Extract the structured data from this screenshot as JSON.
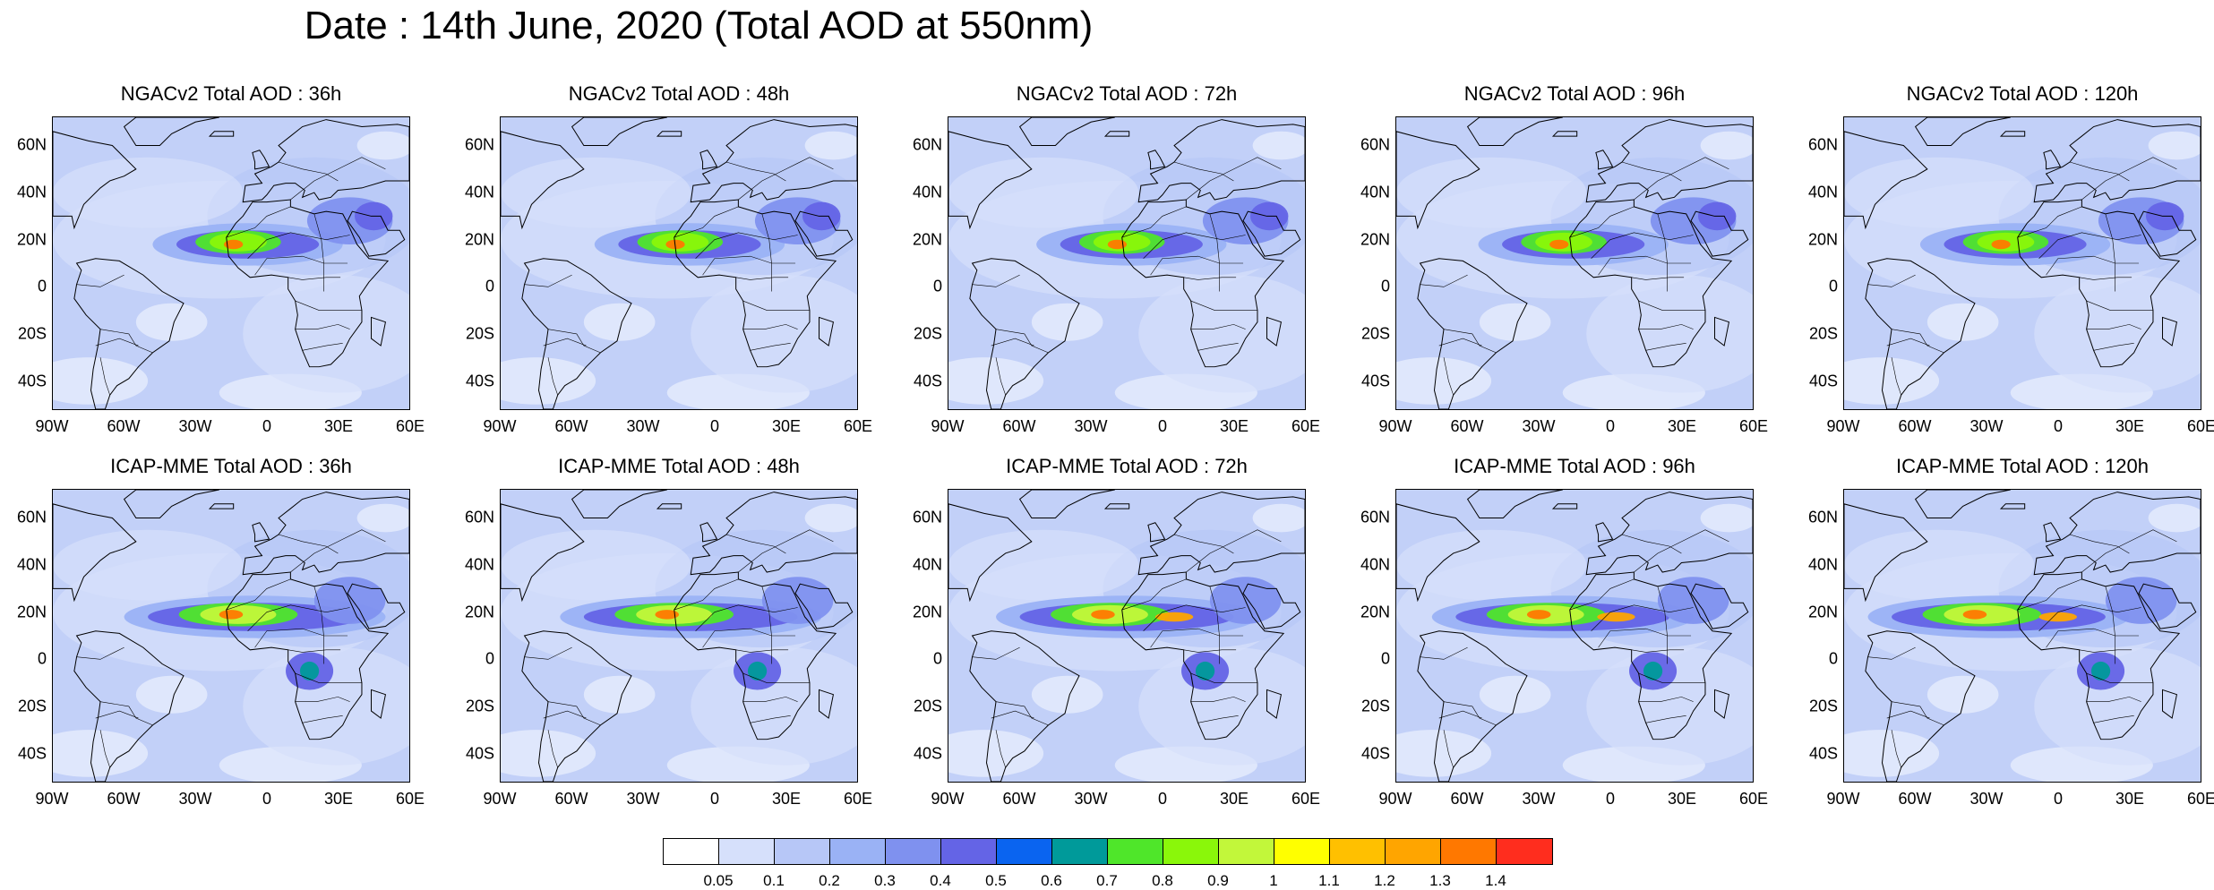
{
  "title": "Date : 14th June, 2020 (Total AOD at 550nm)",
  "panels": [
    {
      "title": "NGACv2 Total AOD : 36h",
      "model": "NGACv2",
      "lead": "36h"
    },
    {
      "title": "NGACv2 Total AOD : 48h",
      "model": "NGACv2",
      "lead": "48h"
    },
    {
      "title": "NGACv2 Total AOD : 72h",
      "model": "NGACv2",
      "lead": "72h"
    },
    {
      "title": "NGACv2 Total AOD : 96h",
      "model": "NGACv2",
      "lead": "96h"
    },
    {
      "title": "NGACv2 Total AOD : 120h",
      "model": "NGACv2",
      "lead": "120h"
    },
    {
      "title": "ICAP-MME Total AOD : 36h",
      "model": "ICAP-MME",
      "lead": "36h"
    },
    {
      "title": "ICAP-MME Total AOD : 48h",
      "model": "ICAP-MME",
      "lead": "48h"
    },
    {
      "title": "ICAP-MME Total AOD : 72h",
      "model": "ICAP-MME",
      "lead": "72h"
    },
    {
      "title": "ICAP-MME Total AOD : 96h",
      "model": "ICAP-MME",
      "lead": "96h"
    },
    {
      "title": "ICAP-MME Total AOD : 120h",
      "model": "ICAP-MME",
      "lead": "120h"
    }
  ],
  "lat_ticks": [
    "60N",
    "40N",
    "20N",
    "0",
    "20S",
    "40S"
  ],
  "lon_ticks": [
    "90W",
    "60W",
    "30W",
    "0",
    "30E",
    "60E"
  ],
  "colorbar": {
    "levels": [
      "0.05",
      "0.1",
      "0.2",
      "0.3",
      "0.4",
      "0.5",
      "0.6",
      "0.7",
      "0.8",
      "0.9",
      "1",
      "1.1",
      "1.2",
      "1.3",
      "1.4"
    ],
    "colors": [
      "#ffffff",
      "#d6e0fb",
      "#b7c7f7",
      "#9ab2f5",
      "#7f91ef",
      "#6464e6",
      "#0a64f0",
      "#009a9a",
      "#4fe62a",
      "#8af70a",
      "#c2f73a",
      "#ffff00",
      "#ffc000",
      "#ffa500",
      "#ff7800",
      "#ff2d1e"
    ]
  },
  "map": {
    "background": "#c2d0f8",
    "ocean_light": "#dfe7fc",
    "land_line": "#000000"
  }
}
